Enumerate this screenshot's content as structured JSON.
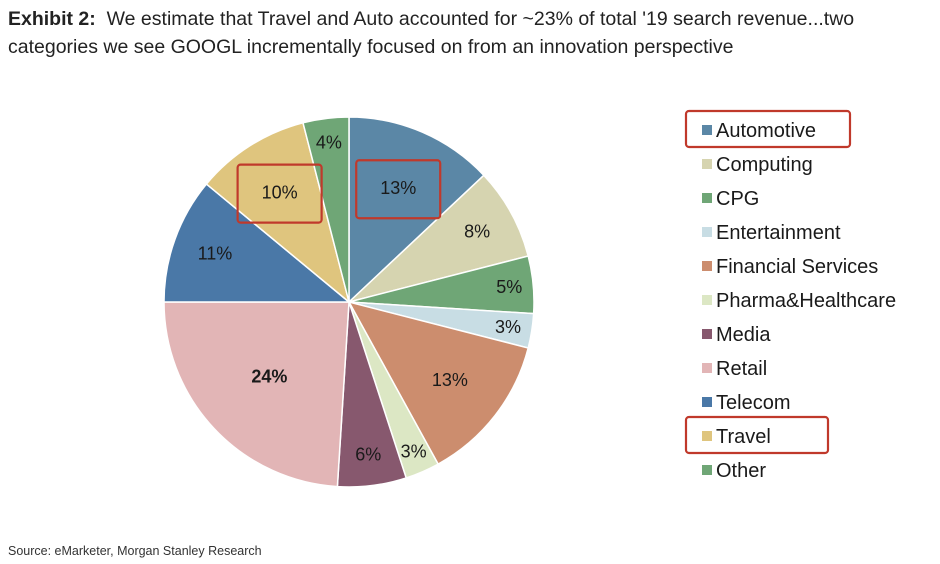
{
  "header": {
    "exhibit": "Exhibit 2:",
    "text": "We estimate that Travel and Auto accounted for ~23% of total '19 search revenue...two categories we see GOOGL incrementally focused on from an innovation perspective"
  },
  "footer": {
    "source": "Source: eMarketer, Morgan Stanley Research"
  },
  "chart_data": {
    "type": "pie",
    "title": "Share of total '19 search revenue by category",
    "unit": "%",
    "start": "12 o'clock, clockwise",
    "legend_position": "right",
    "highlighted": [
      "Automotive",
      "Travel"
    ],
    "slices": [
      {
        "name": "Automotive",
        "value": 13,
        "label": "13%",
        "color": "#5b87a6",
        "bold": false
      },
      {
        "name": "Computing",
        "value": 8,
        "label": "8%",
        "color": "#d6d4b0",
        "bold": false
      },
      {
        "name": "CPG",
        "value": 5,
        "label": "5%",
        "color": "#6fa676",
        "bold": false
      },
      {
        "name": "Entertainment",
        "value": 3,
        "label": "3%",
        "color": "#c8dde4",
        "bold": false
      },
      {
        "name": "Financial Services",
        "value": 13,
        "label": "13%",
        "color": "#cc8d6e",
        "bold": false
      },
      {
        "name": "Pharma&Healthcare",
        "value": 3,
        "label": "3%",
        "color": "#dce7c4",
        "bold": false
      },
      {
        "name": "Media",
        "value": 6,
        "label": "6%",
        "color": "#87586e",
        "bold": false
      },
      {
        "name": "Retail",
        "value": 24,
        "label": "24%",
        "color": "#e2b5b6",
        "bold": true
      },
      {
        "name": "Telecom",
        "value": 11,
        "label": "11%",
        "color": "#4a78a7",
        "bold": false
      },
      {
        "name": "Travel",
        "value": 10,
        "label": "10%",
        "color": "#dfc57e",
        "bold": false
      },
      {
        "name": "Other",
        "value": 4,
        "label": "4%",
        "color": "#6fa676",
        "bold": false
      }
    ]
  }
}
